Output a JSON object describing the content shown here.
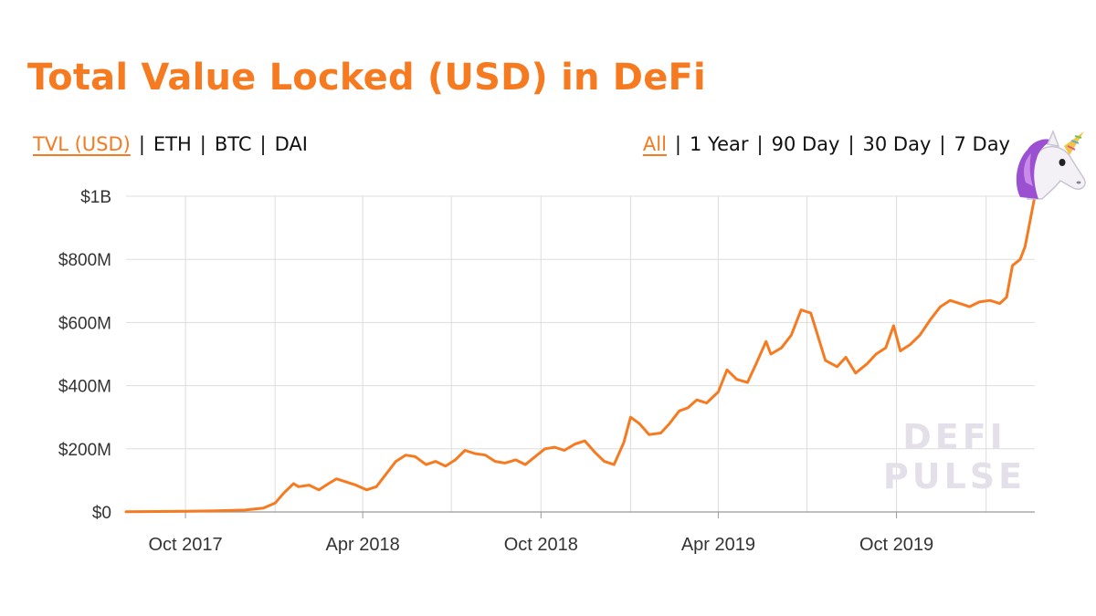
{
  "title": "Total Value Locked (USD) in DeFi",
  "colors": {
    "accent": "#F57A20",
    "grid": "#dddddd",
    "axis": "#999999",
    "watermark": "#e4e0ea"
  },
  "metric_tabs": [
    {
      "label": "TVL (USD)",
      "active": true
    },
    {
      "label": "ETH",
      "active": false
    },
    {
      "label": "BTC",
      "active": false
    },
    {
      "label": "DAI",
      "active": false
    }
  ],
  "range_tabs": [
    {
      "label": "All",
      "active": true
    },
    {
      "label": "1 Year",
      "active": false
    },
    {
      "label": "90 Day",
      "active": false
    },
    {
      "label": "30 Day",
      "active": false
    },
    {
      "label": "7 Day",
      "active": false
    }
  ],
  "watermark": {
    "line1": "DEFI",
    "line2": "PULSE"
  },
  "mascot_icon": "unicorn-icon",
  "chart_data": {
    "type": "line",
    "title": "Total Value Locked (USD) in DeFi",
    "xlabel": "",
    "ylabel": "",
    "grid": true,
    "legend": "none",
    "xlim": [
      "2017-08-01",
      "2020-02-20"
    ],
    "ylim": [
      0,
      1000000000
    ],
    "y_ticks": [
      {
        "value": 0,
        "label": "$0"
      },
      {
        "value": 200000000,
        "label": "$200M"
      },
      {
        "value": 400000000,
        "label": "$400M"
      },
      {
        "value": 600000000,
        "label": "$600M"
      },
      {
        "value": 800000000,
        "label": "$800M"
      },
      {
        "value": 1000000000,
        "label": "$1B"
      }
    ],
    "x_ticks": [
      {
        "value": "2017-10-01",
        "label": "Oct 2017"
      },
      {
        "value": "2018-04-01",
        "label": "Apr 2018"
      },
      {
        "value": "2018-10-01",
        "label": "Oct 2018"
      },
      {
        "value": "2019-04-01",
        "label": "Apr 2019"
      },
      {
        "value": "2019-10-01",
        "label": "Oct 2019"
      }
    ],
    "x_gridlines": [
      "2017-10-01",
      "2018-01-01",
      "2018-04-01",
      "2018-07-01",
      "2018-10-01",
      "2019-01-01",
      "2019-04-01",
      "2019-07-01",
      "2019-10-01",
      "2020-01-01"
    ],
    "series": [
      {
        "color": "#F57A20",
        "points": [
          [
            "2017-08-01",
            1000000
          ],
          [
            "2017-09-01",
            1500000
          ],
          [
            "2017-10-01",
            2000000
          ],
          [
            "2017-11-01",
            3500000
          ],
          [
            "2017-12-01",
            6000000
          ],
          [
            "2017-12-20",
            12000000
          ],
          [
            "2018-01-01",
            28000000
          ],
          [
            "2018-01-10",
            60000000
          ],
          [
            "2018-01-20",
            90000000
          ],
          [
            "2018-01-25",
            80000000
          ],
          [
            "2018-02-05",
            85000000
          ],
          [
            "2018-02-15",
            70000000
          ],
          [
            "2018-02-25",
            90000000
          ],
          [
            "2018-03-05",
            105000000
          ],
          [
            "2018-03-15",
            95000000
          ],
          [
            "2018-03-25",
            85000000
          ],
          [
            "2018-04-05",
            70000000
          ],
          [
            "2018-04-15",
            80000000
          ],
          [
            "2018-04-25",
            120000000
          ],
          [
            "2018-05-05",
            160000000
          ],
          [
            "2018-05-15",
            180000000
          ],
          [
            "2018-05-25",
            175000000
          ],
          [
            "2018-06-05",
            150000000
          ],
          [
            "2018-06-15",
            160000000
          ],
          [
            "2018-06-25",
            145000000
          ],
          [
            "2018-07-05",
            165000000
          ],
          [
            "2018-07-15",
            195000000
          ],
          [
            "2018-07-25",
            185000000
          ],
          [
            "2018-08-05",
            180000000
          ],
          [
            "2018-08-15",
            160000000
          ],
          [
            "2018-08-25",
            155000000
          ],
          [
            "2018-09-05",
            165000000
          ],
          [
            "2018-09-15",
            150000000
          ],
          [
            "2018-09-25",
            175000000
          ],
          [
            "2018-10-05",
            200000000
          ],
          [
            "2018-10-15",
            205000000
          ],
          [
            "2018-10-25",
            195000000
          ],
          [
            "2018-11-05",
            215000000
          ],
          [
            "2018-11-15",
            225000000
          ],
          [
            "2018-11-25",
            190000000
          ],
          [
            "2018-12-05",
            160000000
          ],
          [
            "2018-12-15",
            150000000
          ],
          [
            "2018-12-25",
            220000000
          ],
          [
            "2019-01-01",
            300000000
          ],
          [
            "2019-01-10",
            280000000
          ],
          [
            "2019-01-20",
            245000000
          ],
          [
            "2019-02-01",
            250000000
          ],
          [
            "2019-02-10",
            280000000
          ],
          [
            "2019-02-20",
            320000000
          ],
          [
            "2019-03-01",
            330000000
          ],
          [
            "2019-03-10",
            355000000
          ],
          [
            "2019-03-20",
            345000000
          ],
          [
            "2019-04-01",
            380000000
          ],
          [
            "2019-04-10",
            450000000
          ],
          [
            "2019-04-20",
            420000000
          ],
          [
            "2019-05-01",
            410000000
          ],
          [
            "2019-05-10",
            470000000
          ],
          [
            "2019-05-20",
            540000000
          ],
          [
            "2019-05-25",
            500000000
          ],
          [
            "2019-06-05",
            520000000
          ],
          [
            "2019-06-15",
            560000000
          ],
          [
            "2019-06-25",
            640000000
          ],
          [
            "2019-07-05",
            630000000
          ],
          [
            "2019-07-12",
            560000000
          ],
          [
            "2019-07-20",
            480000000
          ],
          [
            "2019-08-01",
            460000000
          ],
          [
            "2019-08-10",
            490000000
          ],
          [
            "2019-08-20",
            440000000
          ],
          [
            "2019-09-01",
            470000000
          ],
          [
            "2019-09-10",
            500000000
          ],
          [
            "2019-09-20",
            520000000
          ],
          [
            "2019-09-28",
            590000000
          ],
          [
            "2019-10-05",
            510000000
          ],
          [
            "2019-10-15",
            530000000
          ],
          [
            "2019-10-25",
            560000000
          ],
          [
            "2019-11-05",
            610000000
          ],
          [
            "2019-11-15",
            650000000
          ],
          [
            "2019-11-25",
            670000000
          ],
          [
            "2019-12-05",
            660000000
          ],
          [
            "2019-12-15",
            650000000
          ],
          [
            "2019-12-25",
            665000000
          ],
          [
            "2020-01-05",
            670000000
          ],
          [
            "2020-01-15",
            660000000
          ],
          [
            "2020-01-22",
            680000000
          ],
          [
            "2020-01-28",
            780000000
          ],
          [
            "2020-02-05",
            800000000
          ],
          [
            "2020-02-10",
            840000000
          ],
          [
            "2020-02-15",
            920000000
          ],
          [
            "2020-02-20",
            1000000000
          ]
        ]
      }
    ]
  }
}
